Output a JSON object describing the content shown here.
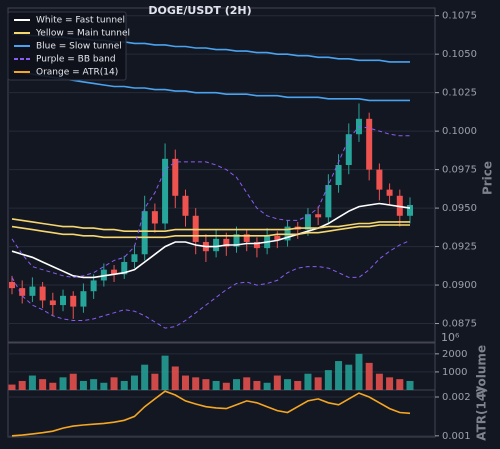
{
  "chart_data": {
    "type": "candlestick",
    "title": "DOGE/USDT (2H)",
    "ylabel": "Price",
    "ylim": [
      0.0863,
      0.108
    ],
    "yticks": [
      0.0875,
      {
        "value": 0.09,
        "label": "0.0900"
      },
      0.0925,
      {
        "value": 0.095,
        "label": "0.0950"
      },
      0.0975,
      {
        "value": 0.1,
        "label": "0.1000"
      },
      0.1025,
      {
        "value": 0.105,
        "label": "0.1050"
      },
      0.1075
    ],
    "grid": true,
    "legend": "upper left",
    "up_color": "#26a69a",
    "down_color": "#ef5350",
    "open": [
      0.0902,
      0.0898,
      0.0893,
      0.0899,
      0.089,
      0.0887,
      0.0893,
      0.0886,
      0.0896,
      0.0903,
      0.091,
      0.0907,
      0.0915,
      0.092,
      0.0948,
      0.094,
      0.0982,
      0.0958,
      0.0945,
      0.0928,
      0.0922,
      0.093,
      0.0925,
      0.0933,
      0.0928,
      0.0924,
      0.0932,
      0.0929,
      0.0938,
      0.0936,
      0.0946,
      0.0944,
      0.0965,
      0.0978,
      0.0998,
      0.1008,
      0.0975,
      0.0962,
      0.0958,
      0.0945
    ],
    "high": [
      0.0906,
      0.0903,
      0.0905,
      0.0902,
      0.0895,
      0.0897,
      0.0896,
      0.0901,
      0.0907,
      0.0914,
      0.0913,
      0.0919,
      0.0926,
      0.0958,
      0.0953,
      0.0992,
      0.0988,
      0.0962,
      0.095,
      0.0933,
      0.0936,
      0.0934,
      0.0938,
      0.0936,
      0.0931,
      0.0937,
      0.0935,
      0.0942,
      0.0941,
      0.095,
      0.0951,
      0.0972,
      0.0985,
      0.1005,
      0.1018,
      0.1012,
      0.0979,
      0.0966,
      0.0962,
      0.0957
    ],
    "low": [
      0.0894,
      0.0888,
      0.0889,
      0.0885,
      0.088,
      0.0883,
      0.0878,
      0.0882,
      0.0891,
      0.0899,
      0.0902,
      0.0904,
      0.0911,
      0.0916,
      0.0934,
      0.0936,
      0.095,
      0.0938,
      0.092,
      0.0915,
      0.0918,
      0.0919,
      0.0921,
      0.0922,
      0.0918,
      0.092,
      0.0924,
      0.0925,
      0.093,
      0.0932,
      0.0939,
      0.094,
      0.096,
      0.0972,
      0.0993,
      0.0968,
      0.0955,
      0.0952,
      0.0938,
      0.094
    ],
    "close": [
      0.0898,
      0.0893,
      0.0899,
      0.089,
      0.0887,
      0.0893,
      0.0886,
      0.0896,
      0.0903,
      0.091,
      0.0907,
      0.0915,
      0.092,
      0.0948,
      0.094,
      0.0982,
      0.0958,
      0.0945,
      0.0928,
      0.0922,
      0.093,
      0.0925,
      0.0933,
      0.0928,
      0.0924,
      0.0932,
      0.0929,
      0.0938,
      0.0936,
      0.0946,
      0.0944,
      0.0965,
      0.0978,
      0.0998,
      0.1008,
      0.0975,
      0.0962,
      0.0958,
      0.0945,
      0.0952
    ],
    "series": [
      {
        "name": "White = Fast tunnel",
        "color": "#ffffff",
        "dash": false,
        "panel": "price",
        "lines": [
          [
            0.0922,
            0.092,
            0.0918,
            0.0915,
            0.0912,
            0.0909,
            0.0906,
            0.0905,
            0.0905,
            0.0906,
            0.0907,
            0.0908,
            0.091,
            0.0915,
            0.092,
            0.0925,
            0.0928,
            0.0928,
            0.0926,
            0.0925,
            0.0925,
            0.0926,
            0.0926,
            0.0927,
            0.0927,
            0.0928,
            0.0929,
            0.0931,
            0.0933,
            0.0935,
            0.0937,
            0.094,
            0.0944,
            0.0948,
            0.0951,
            0.0952,
            0.0953,
            0.0952,
            0.0951,
            0.095
          ]
        ]
      },
      {
        "name": "Yellow = Main tunnel",
        "color": "#f5d76e",
        "dash": false,
        "panel": "price",
        "lines": [
          [
            0.0943,
            0.0942,
            0.0941,
            0.094,
            0.0939,
            0.0938,
            0.0938,
            0.0937,
            0.0937,
            0.0936,
            0.0936,
            0.0935,
            0.0935,
            0.0935,
            0.0935,
            0.0935,
            0.0936,
            0.0936,
            0.0936,
            0.0936,
            0.0936,
            0.0936,
            0.0936,
            0.0936,
            0.0936,
            0.0936,
            0.0936,
            0.0936,
            0.0937,
            0.0937,
            0.0937,
            0.0938,
            0.0938,
            0.0939,
            0.094,
            0.094,
            0.0941,
            0.0941,
            0.0941,
            0.0941
          ],
          [
            0.0938,
            0.0937,
            0.0936,
            0.0935,
            0.0934,
            0.0933,
            0.0933,
            0.0932,
            0.0932,
            0.0931,
            0.0931,
            0.0931,
            0.0931,
            0.0931,
            0.0931,
            0.0931,
            0.0932,
            0.0932,
            0.0932,
            0.0932,
            0.0932,
            0.0932,
            0.0932,
            0.0932,
            0.0932,
            0.0932,
            0.0933,
            0.0933,
            0.0933,
            0.0934,
            0.0934,
            0.0935,
            0.0936,
            0.0937,
            0.0938,
            0.0938,
            0.0939,
            0.0939,
            0.0939,
            0.0939
          ]
        ]
      },
      {
        "name": "Blue = Slow tunnel",
        "color": "#4aa3f0",
        "dash": false,
        "panel": "price",
        "lines": [
          [
            0.1063,
            0.1063,
            0.1062,
            0.1062,
            0.1061,
            0.1061,
            0.106,
            0.106,
            0.1059,
            0.1059,
            0.1058,
            0.1058,
            0.1057,
            0.1057,
            0.1056,
            0.1056,
            0.1055,
            0.1055,
            0.1054,
            0.1054,
            0.1053,
            0.1053,
            0.1052,
            0.1052,
            0.1051,
            0.1051,
            0.105,
            0.105,
            0.1049,
            0.1049,
            0.1048,
            0.1048,
            0.1047,
            0.1047,
            0.1046,
            0.1046,
            0.1046,
            0.1045,
            0.1045,
            0.1045
          ],
          [
            0.1039,
            0.1038,
            0.1037,
            0.1036,
            0.1035,
            0.1034,
            0.1033,
            0.1032,
            0.1031,
            0.103,
            0.1029,
            0.1029,
            0.1028,
            0.1028,
            0.1027,
            0.1027,
            0.1026,
            0.1026,
            0.1025,
            0.1025,
            0.1025,
            0.1024,
            0.1024,
            0.1024,
            0.1023,
            0.1023,
            0.1023,
            0.1022,
            0.1022,
            0.1022,
            0.1022,
            0.1021,
            0.1021,
            0.1021,
            0.1021,
            0.102,
            0.102,
            0.102,
            0.102,
            0.102
          ]
        ]
      },
      {
        "name": "Purple = BB band",
        "color": "#8b5cf6",
        "dash": true,
        "panel": "price",
        "lines": [
          [
            0.093,
            0.092,
            0.0912,
            0.091,
            0.0908,
            0.0906,
            0.0905,
            0.0906,
            0.0908,
            0.0912,
            0.0916,
            0.0918,
            0.0925,
            0.095,
            0.096,
            0.0975,
            0.098,
            0.098,
            0.098,
            0.098,
            0.0978,
            0.0975,
            0.097,
            0.096,
            0.095,
            0.0945,
            0.0943,
            0.0942,
            0.0942,
            0.0945,
            0.095,
            0.0965,
            0.098,
            0.0995,
            0.1003,
            0.1002,
            0.1,
            0.0998,
            0.0997,
            0.0997
          ],
          [
            0.0905,
            0.0893,
            0.0887,
            0.0884,
            0.088,
            0.0878,
            0.0877,
            0.0877,
            0.0878,
            0.088,
            0.0882,
            0.0884,
            0.0883,
            0.088,
            0.0876,
            0.0872,
            0.0873,
            0.0877,
            0.0882,
            0.0887,
            0.0892,
            0.0897,
            0.0901,
            0.0902,
            0.09,
            0.0901,
            0.0903,
            0.0908,
            0.0911,
            0.0912,
            0.0912,
            0.0911,
            0.0908,
            0.0905,
            0.0905,
            0.091,
            0.0917,
            0.0922,
            0.0926,
            0.0929
          ]
        ]
      },
      {
        "name": "Orange = ATR(14)",
        "color": "#f5a623",
        "dash": false,
        "panel": "atr",
        "lines": [
          [
            0.001,
            0.00102,
            0.00105,
            0.00108,
            0.00112,
            0.0012,
            0.00125,
            0.00128,
            0.0013,
            0.00132,
            0.00135,
            0.0014,
            0.0015,
            0.00175,
            0.00195,
            0.00215,
            0.00205,
            0.0019,
            0.00182,
            0.00175,
            0.00172,
            0.0017,
            0.0018,
            0.0019,
            0.00185,
            0.00175,
            0.00165,
            0.0016,
            0.00175,
            0.0019,
            0.00195,
            0.00185,
            0.0018,
            0.00195,
            0.0021,
            0.002,
            0.00185,
            0.0017,
            0.0016,
            0.00158
          ]
        ]
      }
    ],
    "volume": {
      "ylabel": "Volume",
      "offset_label": "10⁶",
      "ylim": [
        0,
        2600
      ],
      "yticks": [
        1000,
        2000
      ],
      "values": [
        300,
        500,
        800,
        600,
        400,
        700,
        900,
        500,
        600,
        400,
        700,
        500,
        800,
        1400,
        900,
        1900,
        1300,
        800,
        700,
        600,
        500,
        400,
        600,
        700,
        500,
        400,
        800,
        600,
        500,
        900,
        700,
        1100,
        1600,
        1400,
        2000,
        1500,
        900,
        700,
        600,
        500
      ]
    },
    "atr": {
      "ylabel": "ATR(14)",
      "ylim": [
        0.00097,
        0.00218
      ],
      "yticks": [
        0.001,
        0.002
      ]
    }
  }
}
